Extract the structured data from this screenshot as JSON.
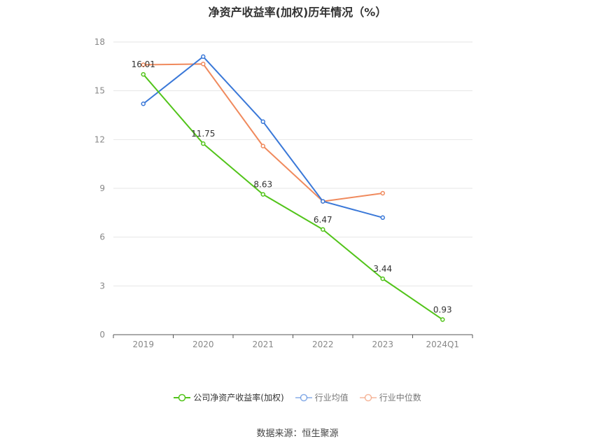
{
  "chart_data": {
    "type": "line",
    "title": "净资产收益率(加权)历年情况（%）",
    "categories": [
      "2019",
      "2020",
      "2021",
      "2022",
      "2023",
      "2024Q1"
    ],
    "ylim": [
      0,
      18
    ],
    "yticks": [
      0,
      3,
      6,
      9,
      12,
      15,
      18
    ],
    "grid": true,
    "legend_position": "bottom",
    "series": [
      {
        "name": "公司净资产收益率(加权)",
        "color": "#52c41a",
        "values": [
          16.01,
          11.75,
          8.63,
          6.47,
          3.44,
          0.93
        ],
        "labels": [
          "16.01",
          "11.75",
          "8.63",
          "6.47",
          "3.44",
          "0.93"
        ]
      },
      {
        "name": "行业均值",
        "color": "#3a78d8",
        "values": [
          14.2,
          17.1,
          13.1,
          8.2,
          7.2,
          null
        ]
      },
      {
        "name": "行业中位数",
        "color": "#f08a5d",
        "values": [
          16.6,
          16.65,
          11.6,
          8.2,
          8.7,
          null
        ]
      }
    ]
  },
  "source": "数据来源：恒生聚源"
}
